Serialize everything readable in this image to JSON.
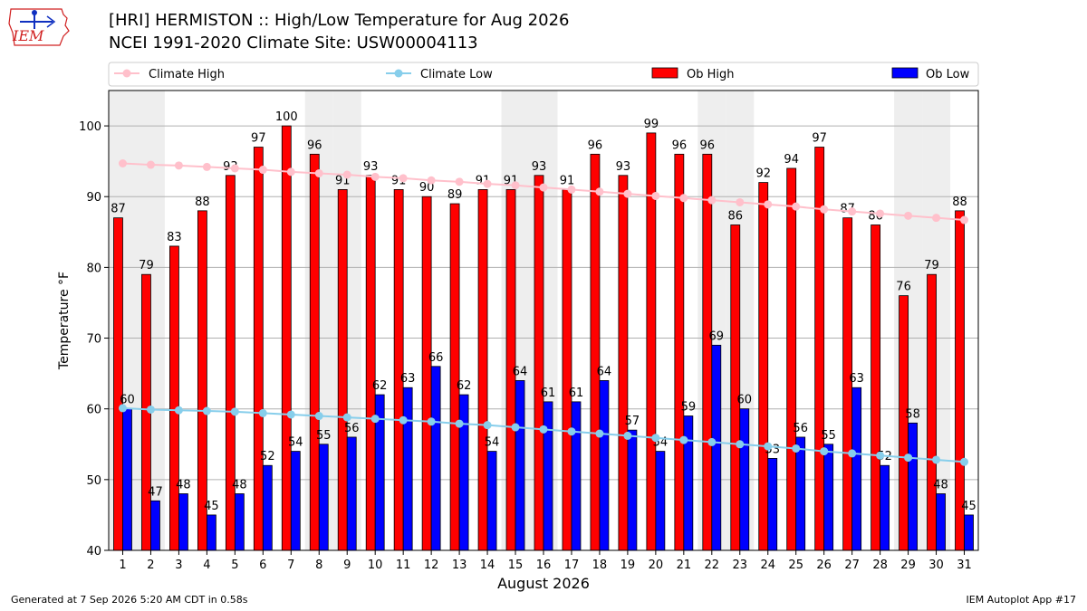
{
  "header": {
    "title_line1": "[HRI] HERMISTON :: High/Low Temperature for Aug 2026",
    "title_line2": "NCEI 1991-2020 Climate Site: USW00004113",
    "logo_text": "IEM"
  },
  "footer": {
    "generated": "Generated at 7 Sep 2026 5:20 AM CDT in 0.58s",
    "app": "IEM Autoplot App #17"
  },
  "colors": {
    "ob_high": "#ff0000",
    "ob_low": "#0000ff",
    "climate_high": "#ffc0cb",
    "climate_low": "#87ceeb",
    "weekend_shade": "#eeeeee"
  },
  "chart_data": {
    "type": "bar",
    "xlabel": "August 2026",
    "ylabel": "Temperature °F",
    "ylim": [
      40,
      105
    ],
    "yticks": [
      40,
      50,
      60,
      70,
      80,
      90,
      100
    ],
    "categories": [
      "1",
      "2",
      "3",
      "4",
      "5",
      "6",
      "7",
      "8",
      "9",
      "10",
      "11",
      "12",
      "13",
      "14",
      "15",
      "16",
      "17",
      "18",
      "19",
      "20",
      "21",
      "22",
      "23",
      "24",
      "25",
      "26",
      "27",
      "28",
      "29",
      "30",
      "31"
    ],
    "shaded_days": [
      1,
      2,
      8,
      9,
      15,
      16,
      22,
      23,
      29,
      30
    ],
    "grid": "horizontal",
    "legend_position": "top",
    "series": [
      {
        "name": "Ob High",
        "kind": "bar",
        "values": [
          87,
          79,
          83,
          88,
          93,
          97,
          100,
          96,
          91,
          93,
          91,
          90,
          89,
          91,
          91,
          93,
          91,
          96,
          93,
          99,
          96,
          96,
          86,
          92,
          94,
          97,
          87,
          86,
          76,
          79,
          88
        ]
      },
      {
        "name": "Ob Low",
        "kind": "bar",
        "values": [
          60,
          47,
          48,
          45,
          48,
          52,
          54,
          55,
          56,
          62,
          63,
          66,
          62,
          54,
          64,
          61,
          61,
          64,
          57,
          54,
          59,
          69,
          60,
          53,
          56,
          55,
          63,
          52,
          58,
          48,
          45
        ]
      },
      {
        "name": "Climate High",
        "kind": "line",
        "values": [
          94.7,
          94.5,
          94.4,
          94.2,
          94.0,
          93.8,
          93.5,
          93.3,
          93.1,
          92.8,
          92.6,
          92.3,
          92.1,
          91.8,
          91.6,
          91.3,
          91.0,
          90.7,
          90.4,
          90.1,
          89.8,
          89.5,
          89.2,
          88.9,
          88.6,
          88.2,
          87.9,
          87.6,
          87.3,
          87.0,
          86.7
        ]
      },
      {
        "name": "Climate Low",
        "kind": "line",
        "values": [
          60.1,
          59.9,
          59.8,
          59.7,
          59.6,
          59.4,
          59.2,
          59.0,
          58.8,
          58.6,
          58.4,
          58.2,
          57.9,
          57.7,
          57.4,
          57.1,
          56.8,
          56.5,
          56.2,
          55.9,
          55.6,
          55.3,
          55.0,
          54.7,
          54.4,
          54.0,
          53.7,
          53.4,
          53.1,
          52.8,
          52.5
        ]
      }
    ]
  }
}
